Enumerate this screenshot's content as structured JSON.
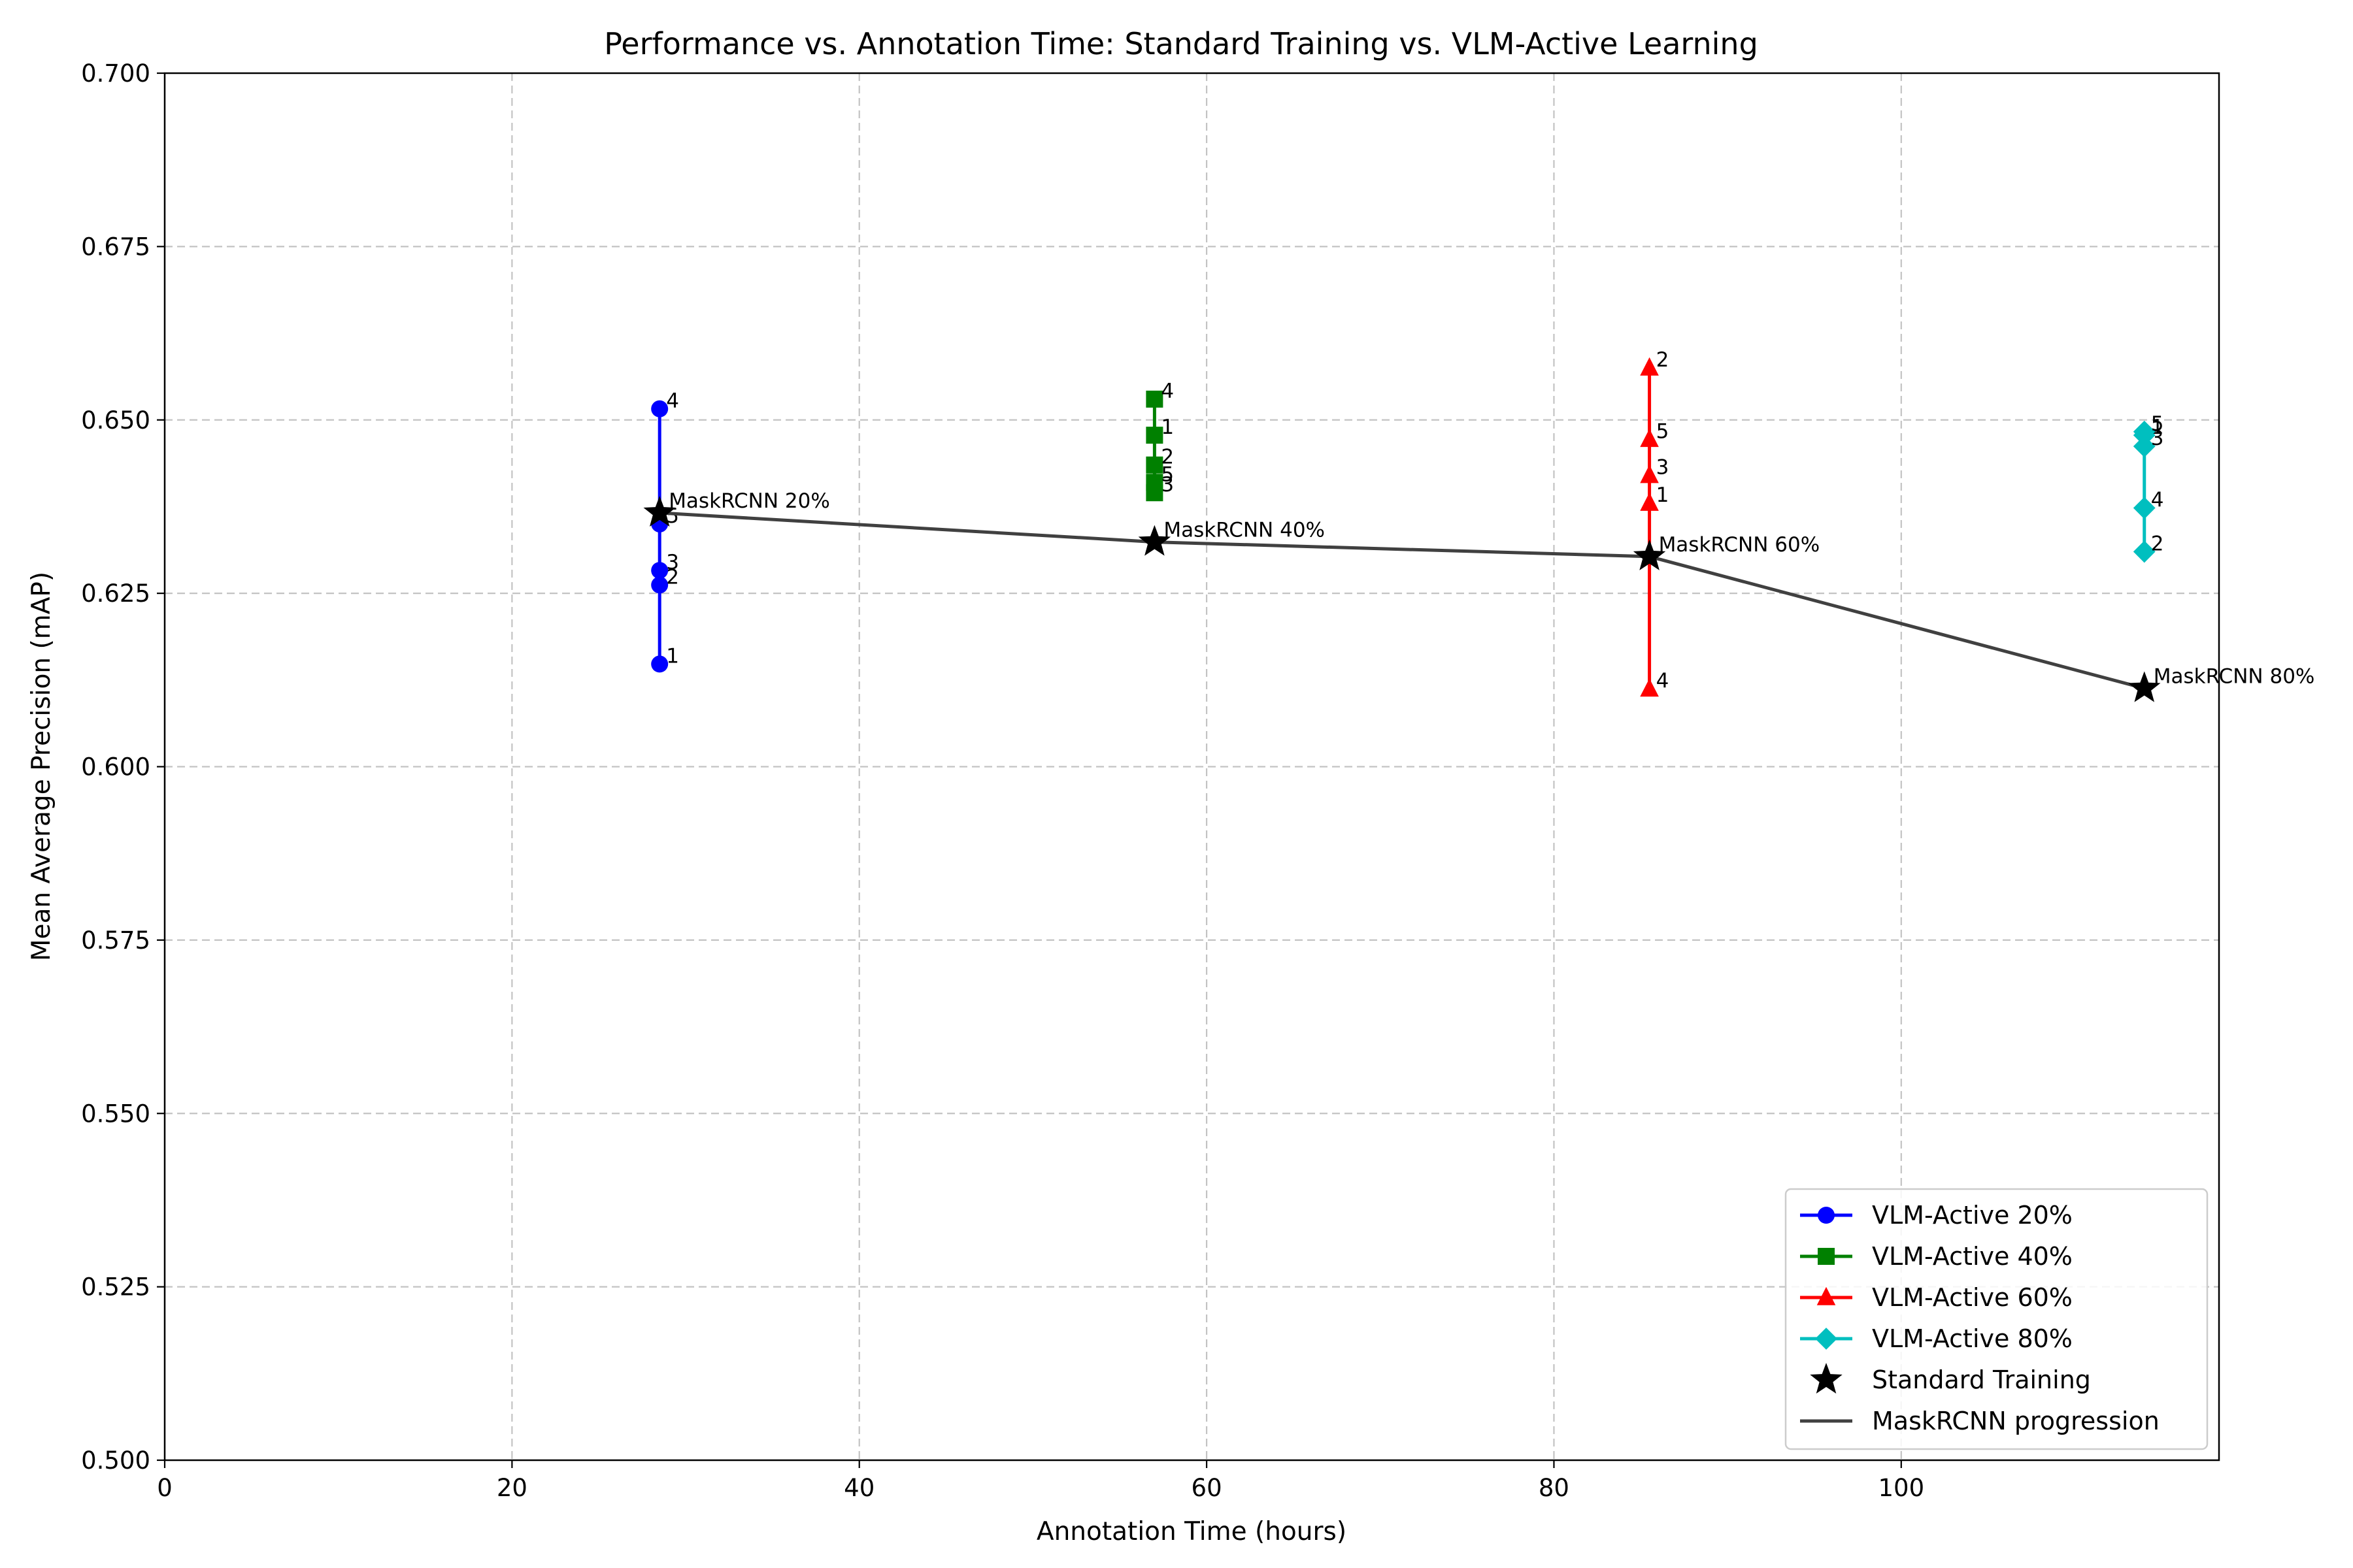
{
  "chart_data": {
    "type": "scatter",
    "title": "Performance vs. Annotation Time: Standard Training vs. VLM-Active Learning",
    "xlabel": "Annotation Time (hours)",
    "ylabel": "Mean Average Precision (mAP)",
    "xlim": [
      0,
      118.3
    ],
    "ylim": [
      0.5,
      0.7
    ],
    "x_ticks": [
      0,
      20,
      40,
      60,
      80,
      100
    ],
    "y_ticks": [
      0.5,
      0.525,
      0.55,
      0.575,
      0.6,
      0.625,
      0.65,
      0.675,
      0.7
    ],
    "grid": true,
    "legend_position": "lower right",
    "series": [
      {
        "name": "VLM-Active 20%",
        "color": "#0000ff",
        "marker": "circle",
        "x": 28.5,
        "points": [
          {
            "label": "1",
            "y": 0.6148
          },
          {
            "label": "2",
            "y": 0.6262
          },
          {
            "label": "3",
            "y": 0.6283
          },
          {
            "label": "4",
            "y": 0.6516
          },
          {
            "label": "5",
            "y": 0.635
          }
        ]
      },
      {
        "name": "VLM-Active 40%",
        "color": "#008000",
        "marker": "square",
        "x": 57.0,
        "points": [
          {
            "label": "1",
            "y": 0.6478
          },
          {
            "label": "2",
            "y": 0.6435
          },
          {
            "label": "3",
            "y": 0.6395
          },
          {
            "label": "4",
            "y": 0.653
          },
          {
            "label": "5",
            "y": 0.641
          }
        ]
      },
      {
        "name": "VLM-Active 60%",
        "color": "#ff0000",
        "marker": "triangle",
        "x": 85.5,
        "points": [
          {
            "label": "1",
            "y": 0.638
          },
          {
            "label": "2",
            "y": 0.6575
          },
          {
            "label": "3",
            "y": 0.642
          },
          {
            "label": "4",
            "y": 0.6112
          },
          {
            "label": "5",
            "y": 0.6472
          }
        ]
      },
      {
        "name": "VLM-Active 80%",
        "color": "#00bfbf",
        "marker": "diamond",
        "x": 114.0,
        "points": [
          {
            "label": "1",
            "y": 0.6478
          },
          {
            "label": "2",
            "y": 0.631
          },
          {
            "label": "3",
            "y": 0.6462
          },
          {
            "label": "4",
            "y": 0.6373
          },
          {
            "label": "5",
            "y": 0.6483
          }
        ]
      }
    ],
    "standard_training": {
      "name": "Standard Training",
      "color": "#000000",
      "marker": "star",
      "points": [
        {
          "x": 28.5,
          "y": 0.6366,
          "label": "MaskRCNN 20%"
        },
        {
          "x": 57.0,
          "y": 0.6324,
          "label": "MaskRCNN 40%"
        },
        {
          "x": 85.5,
          "y": 0.6303,
          "label": "MaskRCNN 60%"
        },
        {
          "x": 114.0,
          "y": 0.6113,
          "label": "MaskRCNN 80%"
        }
      ]
    },
    "progression_line": {
      "name": "MaskRCNN progression",
      "color": "#404040"
    }
  }
}
